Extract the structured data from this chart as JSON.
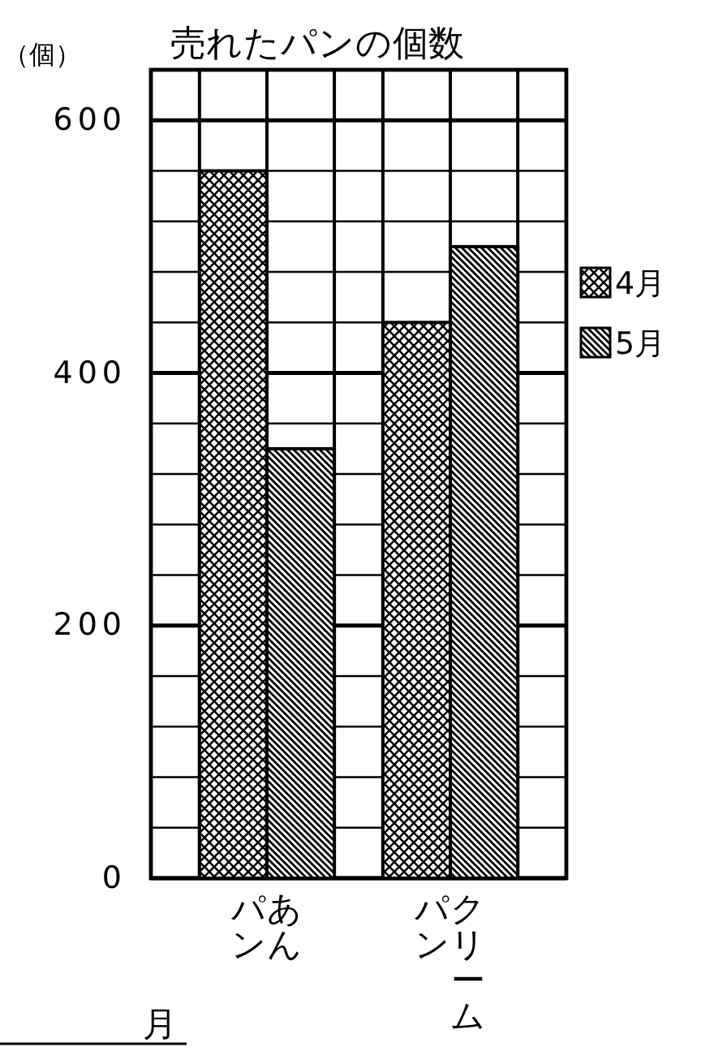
{
  "chart_data": {
    "type": "bar",
    "title": "売れたパンの個数",
    "ylabel": "（個）",
    "categories": [
      "あんパン",
      "クリームパン"
    ],
    "series": [
      {
        "name": "4月",
        "color": "#000000",
        "values": [
          560,
          440
        ]
      },
      {
        "name": "5月",
        "color": "#000000",
        "values": [
          340,
          500
        ]
      }
    ],
    "ylim": [
      0,
      640
    ],
    "yticks": [
      0,
      {
        "value": 40,
        "label": null
      },
      {
        "value": 80,
        "label": null
      },
      {
        "value": 120,
        "label": null
      },
      {
        "value": 160,
        "label": null
      },
      200,
      {
        "value": 240,
        "label": null
      },
      {
        "value": 280,
        "label": null
      },
      {
        "value": 320,
        "label": null
      },
      {
        "value": 360,
        "label": null
      },
      400,
      {
        "value": 440,
        "label": null
      },
      {
        "value": 480,
        "label": null
      },
      {
        "value": 520,
        "label": null
      },
      {
        "value": 560,
        "label": null
      },
      600,
      {
        "value": 640,
        "label": null
      }
    ],
    "grid": true,
    "legend": "right",
    "annotations": [
      "月"
    ]
  }
}
